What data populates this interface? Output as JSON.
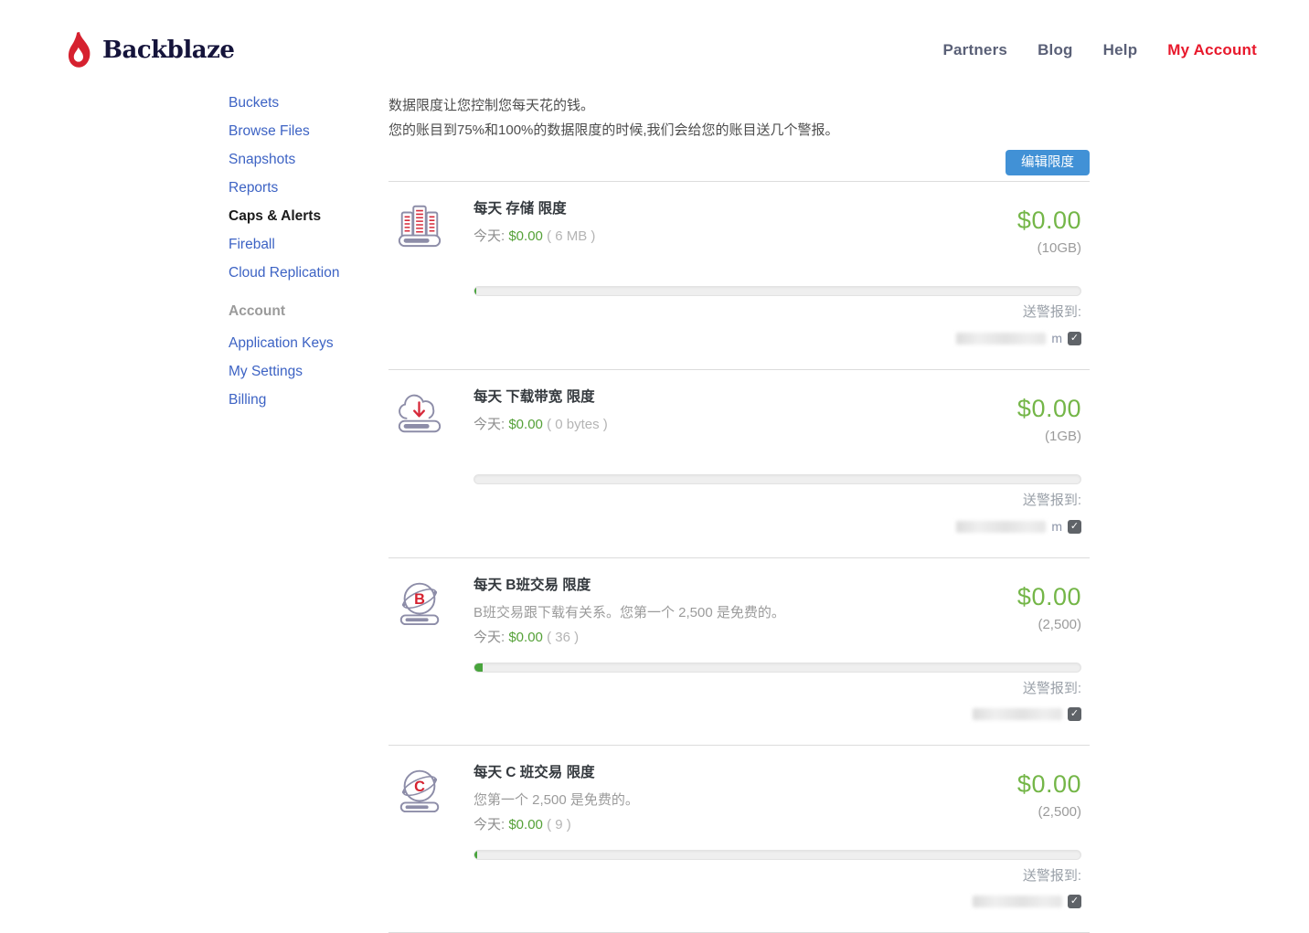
{
  "header": {
    "brand": "Backblaze",
    "nav": [
      {
        "label": "Partners",
        "active": false
      },
      {
        "label": "Blog",
        "active": false
      },
      {
        "label": "Help",
        "active": false
      },
      {
        "label": "My Account",
        "active": true
      }
    ]
  },
  "sidebar": {
    "items": [
      {
        "label": "Buckets",
        "active": false
      },
      {
        "label": "Browse Files",
        "active": false
      },
      {
        "label": "Snapshots",
        "active": false
      },
      {
        "label": "Reports",
        "active": false
      },
      {
        "label": "Caps & Alerts",
        "active": true
      },
      {
        "label": "Fireball",
        "active": false
      },
      {
        "label": "Cloud Replication",
        "active": false
      }
    ],
    "account_heading": "Account",
    "account_items": [
      {
        "label": "Application Keys"
      },
      {
        "label": "My Settings"
      },
      {
        "label": "Billing"
      }
    ]
  },
  "main": {
    "intro_line1": "数据限度让您控制您每天花的钱。",
    "intro_line2": "您的账目到75%和100%的数据限度的时候,我们会给您的账目送几个警报。",
    "edit_button_label": "编辑限度",
    "today_label": "今天:",
    "alerts_label": "送警报到:",
    "sections": [
      {
        "icon": "storage-servers-icon",
        "title": "每天 存储 限度",
        "description": "",
        "today_cost": "$0.00",
        "today_usage": "( 6 MB )",
        "amount": "$0.00",
        "cap": "(10GB)",
        "progress_pct": 0.3,
        "email_suffix": "m",
        "alert_enabled": true
      },
      {
        "icon": "download-cloud-icon",
        "title": "每天 下载带宽 限度",
        "description": "",
        "today_cost": "$0.00",
        "today_usage": "( 0 bytes )",
        "amount": "$0.00",
        "cap": "(1GB)",
        "progress_pct": 0,
        "email_suffix": "m",
        "alert_enabled": true
      },
      {
        "icon": "class-b-transactions-icon",
        "title": "每天 B班交易 限度",
        "description": "B班交易跟下载有关系。您第一个 2,500 是免费的。",
        "today_cost": "$0.00",
        "today_usage": "( 36 )",
        "amount": "$0.00",
        "cap": "(2,500)",
        "progress_pct": 1.4,
        "email_suffix": "",
        "alert_enabled": true
      },
      {
        "icon": "class-c-transactions-icon",
        "title": "每天 C 班交易 限度",
        "description": "您第一个 2,500 是免费的。",
        "today_cost": "$0.00",
        "today_usage": "( 9 )",
        "amount": "$0.00",
        "cap": "(2,500)",
        "progress_pct": 0.4,
        "email_suffix": "",
        "alert_enabled": true
      }
    ]
  },
  "colors": {
    "brand_red": "#d6212f",
    "nav_active_red": "#e8192c",
    "link_blue": "#3d63c4",
    "money_green": "#55a138",
    "big_money_green": "#74b648",
    "button_blue": "#4191d6",
    "progress_green": "#48a43c"
  }
}
